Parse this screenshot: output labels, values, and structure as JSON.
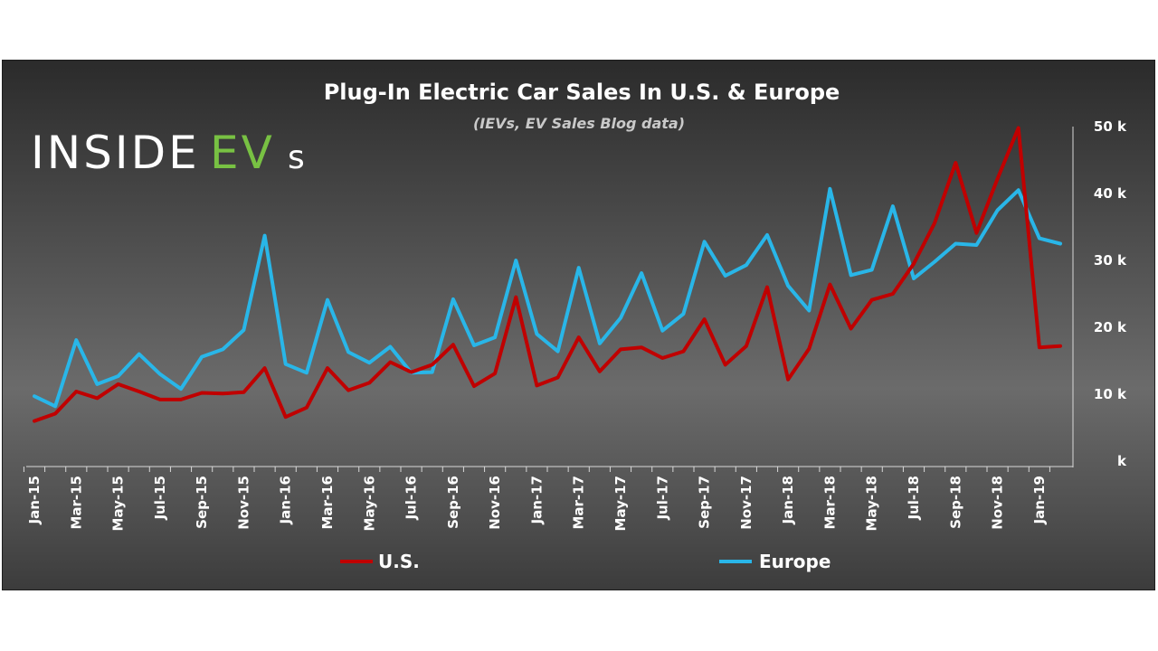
{
  "chart_data": {
    "type": "line",
    "title": "Plug-In Electric Car Sales In U.S. & Europe",
    "subtitle": "(IEVs, EV Sales Blog data)",
    "x": [
      "Jan-15",
      "Feb-15",
      "Mar-15",
      "Apr-15",
      "May-15",
      "Jun-15",
      "Jul-15",
      "Aug-15",
      "Sep-15",
      "Oct-15",
      "Nov-15",
      "Dec-15",
      "Jan-16",
      "Feb-16",
      "Mar-16",
      "Apr-16",
      "May-16",
      "Jun-16",
      "Jul-16",
      "Aug-16",
      "Sep-16",
      "Oct-16",
      "Nov-16",
      "Dec-16",
      "Jan-17",
      "Feb-17",
      "Mar-17",
      "Apr-17",
      "May-17",
      "Jun-17",
      "Jul-17",
      "Aug-17",
      "Sep-17",
      "Oct-17",
      "Nov-17",
      "Dec-17",
      "Jan-18",
      "Feb-18",
      "Mar-18",
      "Apr-18",
      "May-18",
      "Jun-18",
      "Jul-18",
      "Aug-18",
      "Sep-18",
      "Oct-18",
      "Nov-18",
      "Dec-18",
      "Jan-19",
      "Feb-19"
    ],
    "x_tick_labels": [
      "Jan-15",
      "Mar-15",
      "May-15",
      "Jul-15",
      "Sep-15",
      "Nov-15",
      "Jan-16",
      "Mar-16",
      "May-16",
      "Jul-16",
      "Sep-16",
      "Nov-16",
      "Jan-17",
      "Mar-17",
      "May-17",
      "Jul-17",
      "Sep-17",
      "Nov-17",
      "Jan-18",
      "Mar-18",
      "May-18",
      "Jul-18",
      "Sep-18",
      "Nov-18",
      "Jan-19"
    ],
    "y_tick_labels": [
      "k",
      "10 k",
      "20 k",
      "30 k",
      "40 k",
      "50 k"
    ],
    "ylim": [
      0,
      50000
    ],
    "series": [
      {
        "name": "U.S.",
        "color": "#c00000",
        "values": [
          6000,
          7100,
          10400,
          9400,
          11500,
          10400,
          9200,
          9200,
          10200,
          10100,
          10300,
          13900,
          6600,
          8000,
          13900,
          10600,
          11700,
          14800,
          13300,
          14400,
          17400,
          11200,
          13100,
          24500,
          11300,
          12500,
          18500,
          13400,
          16700,
          17000,
          15400,
          16400,
          21200,
          14400,
          17200,
          26000,
          12200,
          16800,
          26400,
          19800,
          24100,
          25000,
          29500,
          35600,
          44600,
          34100,
          42200,
          49800,
          17000,
          17200
        ]
      },
      {
        "name": "Europe",
        "color": "#29b6e8",
        "values": [
          9700,
          8200,
          18100,
          11500,
          12700,
          16000,
          13000,
          10800,
          15600,
          16700,
          19600,
          33700,
          14500,
          13200,
          24100,
          16300,
          14700,
          17100,
          13200,
          13300,
          24200,
          17300,
          18500,
          30000,
          19000,
          16400,
          28900,
          17600,
          21400,
          28100,
          19500,
          22000,
          32800,
          27700,
          29300,
          33800,
          26200,
          22500,
          40700,
          27800,
          28600,
          38100,
          27300,
          29800,
          32500,
          32300,
          37500,
          40500,
          33300,
          32500
        ]
      }
    ],
    "legend": "bottom",
    "grid": false
  },
  "branding": {
    "logo_main": "INSIDE",
    "logo_accent": "EV",
    "logo_suffix": "s"
  }
}
